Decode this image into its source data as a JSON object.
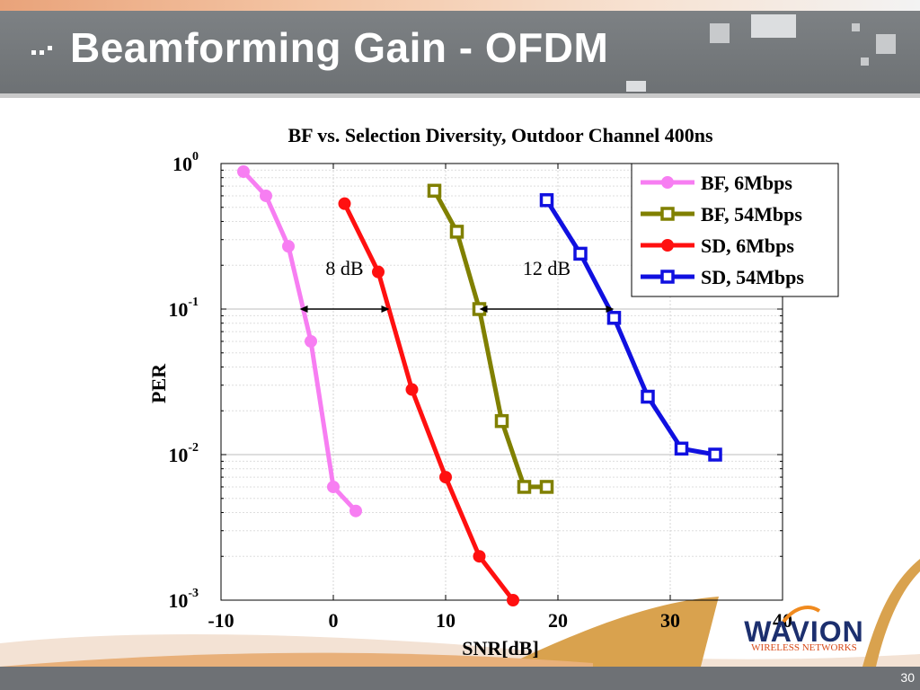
{
  "slide": {
    "title": "Beamforming Gain - OFDM",
    "page_number": "30",
    "logo_text": "WAVION",
    "logo_subtext": "WIRELESS NETWORKS",
    "colors": {
      "header": "#6d7174",
      "accent": "#e9a37a",
      "logo_blue": "#1c2f6e",
      "logo_orange": "#f08a1e"
    }
  },
  "chart_data": {
    "type": "line",
    "title": "BF vs. Selection Diversity, Outdoor Channel 400ns",
    "xlabel": "SNR[dB]",
    "ylabel": "PER",
    "xlim": [
      -10,
      40
    ],
    "ylim": [
      0.001,
      1
    ],
    "yscale": "log",
    "grid": true,
    "legend_position": "top-right",
    "x_ticks": [
      "-10",
      "0",
      "10",
      "20",
      "30",
      "40"
    ],
    "y_ticks": [
      {
        "base": "10",
        "exp": "0",
        "value": 1
      },
      {
        "base": "10",
        "exp": "-1",
        "value": 0.1
      },
      {
        "base": "10",
        "exp": "-2",
        "value": 0.01
      },
      {
        "base": "10",
        "exp": "-3",
        "value": 0.001
      }
    ],
    "series": [
      {
        "name": "BF, 6Mbps",
        "color": "#f77ef2",
        "marker": "circle",
        "x": [
          -8,
          -6,
          -4,
          -2,
          0,
          2
        ],
        "y": [
          0.88,
          0.6,
          0.27,
          0.06,
          0.006,
          0.0041
        ]
      },
      {
        "name": "BF, 54Mbps",
        "color": "#808000",
        "marker": "square",
        "x": [
          9,
          11,
          13,
          15,
          17,
          19
        ],
        "y": [
          0.65,
          0.34,
          0.1,
          0.017,
          0.006,
          0.006
        ]
      },
      {
        "name": "SD, 6Mbps",
        "color": "#ff1010",
        "marker": "circle",
        "x": [
          1,
          4,
          7,
          10,
          13,
          16
        ],
        "y": [
          0.53,
          0.18,
          0.028,
          0.007,
          0.002,
          0.001
        ]
      },
      {
        "name": "SD, 54Mbps",
        "color": "#1010e0",
        "marker": "square",
        "x": [
          19,
          22,
          25,
          28,
          31,
          34
        ],
        "y": [
          0.56,
          0.24,
          0.087,
          0.025,
          0.011,
          0.01
        ]
      }
    ],
    "annotations": [
      {
        "text": "8 dB",
        "from_x": -3,
        "to_x": 5,
        "y": 0.1
      },
      {
        "text": "12 dB",
        "from_x": 13,
        "to_x": 25,
        "y": 0.1
      }
    ]
  }
}
